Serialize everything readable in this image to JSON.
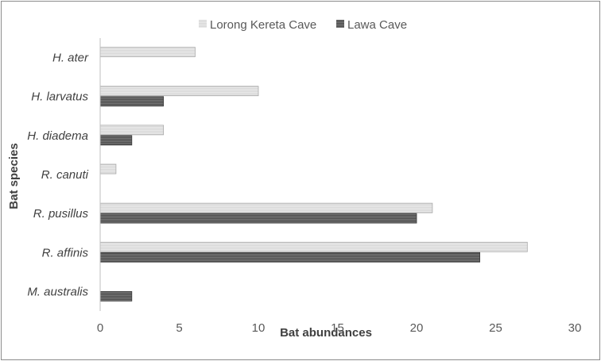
{
  "chart_data": {
    "type": "bar",
    "orientation": "horizontal",
    "categories": [
      "H. ater",
      "H. larvatus",
      "H. diadema",
      "R. canuti",
      "R. pusillus",
      "R. affinis",
      "M. australis"
    ],
    "series": [
      {
        "name": "Lorong Kereta Cave",
        "values": [
          6,
          10,
          4,
          1,
          21,
          27,
          0
        ],
        "color": "#c8c8c8"
      },
      {
        "name": "Lawa Cave",
        "values": [
          0,
          4,
          2,
          0,
          20,
          24,
          2
        ],
        "color": "#5a5a5a"
      }
    ],
    "xlabel": "Bat abundances",
    "ylabel": "Bat species",
    "xlim": [
      0,
      30
    ],
    "xticks": [
      "0",
      "5",
      "10",
      "15",
      "20",
      "25",
      "30"
    ],
    "grid": false,
    "legend_position": "top"
  }
}
